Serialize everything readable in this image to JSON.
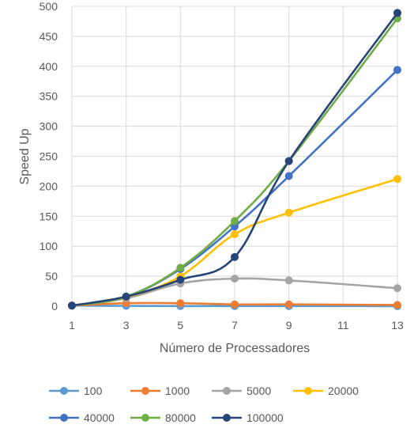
{
  "chart_data": {
    "type": "line",
    "xlabel": "Número de Processadores",
    "ylabel": "Speed Up",
    "xlim": [
      1,
      13
    ],
    "ylim": [
      0,
      500
    ],
    "x_ticks": [
      1,
      3,
      5,
      7,
      9,
      11,
      13
    ],
    "y_ticks": [
      0,
      50,
      100,
      150,
      200,
      250,
      300,
      350,
      400,
      450,
      500
    ],
    "grid": true,
    "smooth": true,
    "legend_position": "bottom",
    "x": [
      1,
      3,
      5,
      7,
      9,
      13
    ],
    "series": [
      {
        "name": "100",
        "color": "#5B9BD5",
        "values": [
          1,
          0.5,
          0.3,
          0.2,
          0.2,
          0.1
        ]
      },
      {
        "name": "1000",
        "color": "#ED7D31",
        "values": [
          1,
          5,
          5,
          3,
          3,
          2
        ]
      },
      {
        "name": "5000",
        "color": "#A5A5A5",
        "values": [
          1,
          13,
          38,
          46,
          43,
          30
        ]
      },
      {
        "name": "20000",
        "color": "#FFC000",
        "values": [
          1,
          15,
          50,
          120,
          156,
          212
        ]
      },
      {
        "name": "40000",
        "color": "#4472C4",
        "values": [
          1,
          16,
          62,
          133,
          217,
          394
        ]
      },
      {
        "name": "80000",
        "color": "#70AD47",
        "values": [
          1,
          16,
          64,
          142,
          242,
          480
        ]
      },
      {
        "name": "100000",
        "color": "#264478",
        "values": [
          1,
          16,
          44,
          82,
          242,
          489
        ]
      }
    ]
  }
}
